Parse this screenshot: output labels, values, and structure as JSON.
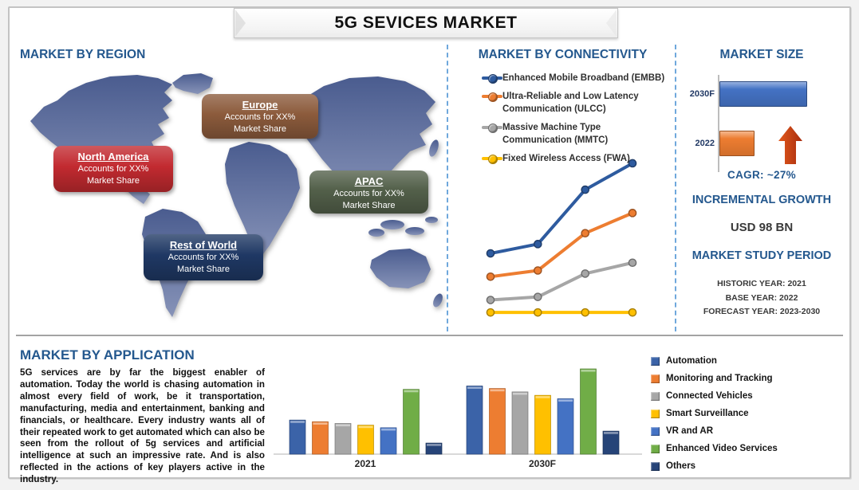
{
  "header": {
    "title": "5G SEVICES MARKET"
  },
  "colors": {
    "heading_blue": "#24588E",
    "dashed_divider": "#6FA8DC",
    "frame_border": "#C3C3C3",
    "growth_arrow": "#C23B16"
  },
  "region_panel": {
    "title": "MARKET BY REGION",
    "regions": [
      {
        "name": "Europe",
        "line1": "Accounts for XX%",
        "line2": "Market Share",
        "color": "#8C5B3C"
      },
      {
        "name": "North America",
        "line1": "Accounts for XX%",
        "line2": "Market Share",
        "color": "#C22A30"
      },
      {
        "name": "APAC",
        "line1": "Accounts for XX%",
        "line2": "Market Share",
        "color": "#53604A"
      },
      {
        "name": "Rest of World",
        "line1": "Accounts for XX%",
        "line2": "Market Share",
        "color": "#1F3864"
      }
    ]
  },
  "connectivity_panel": {
    "title": "MARKET BY CONNECTIVITY",
    "legend": [
      {
        "label": "Enhanced Mobile Broadband (EMBB)",
        "color": "#2E5B9F"
      },
      {
        "label": "Ultra-Reliable and Low Latency Communication (ULCC)",
        "color": "#ED7D31"
      },
      {
        "label": "Massive Machine Type Communication (MMTC)",
        "color": "#A6A6A6"
      },
      {
        "label": "Fixed Wireless Access (FWA)",
        "color": "#FFC000"
      }
    ]
  },
  "market_size_panel": {
    "title": "MARKET SIZE",
    "cagr": "CAGR:  ~27%",
    "incremental_growth_title": "INCREMENTAL GROWTH",
    "incremental_growth_value": "USD 98 BN",
    "study_period_title": "MARKET STUDY PERIOD",
    "study_lines": [
      "HISTORIC YEAR: 2021",
      "BASE YEAR: 2022",
      "FORECAST YEAR: 2023-2030"
    ]
  },
  "application_panel": {
    "title": "MARKET BY APPLICATION",
    "paragraph": "5G services are by far the biggest enabler of automation. Today the world is chasing automation in almost every field of work, be it transportation, manufacturing, media and entertainment, banking and financials, or healthcare. Every industry wants all of their repeated work to get automated which can also be seen from the rollout of 5g services and artificial intelligence at such an impressive rate. And is also reflected in the actions of key players active in the industry.",
    "legend": [
      {
        "label": "Automation",
        "color": "#3B63A8"
      },
      {
        "label": "Monitoring and Tracking",
        "color": "#ED7D31"
      },
      {
        "label": "Connected Vehicles",
        "color": "#A6A6A6"
      },
      {
        "label": "Smart Surveillance",
        "color": "#FFC000"
      },
      {
        "label": "VR and AR",
        "color": "#4472C4"
      },
      {
        "label": "Enhanced Video Services",
        "color": "#70AD47"
      },
      {
        "label": "Others",
        "color": "#264478"
      }
    ]
  },
  "chart_data": [
    {
      "type": "line",
      "title": "MARKET BY CONNECTIVITY",
      "x_labels": [
        "",
        "",
        "",
        ""
      ],
      "note": "No axis tick labels or values are shown in the figure; values are relative estimates on a 0-100 index.",
      "series": [
        {
          "name": "Enhanced Mobile Broadband (EMBB)",
          "color": "#2E5B9F",
          "values": [
            41,
            47,
            82,
            99
          ]
        },
        {
          "name": "Ultra-Reliable and Low Latency Communication (ULCC)",
          "color": "#ED7D31",
          "values": [
            26,
            30,
            54,
            67
          ]
        },
        {
          "name": "Massive Machine Type Communication (MMTC)",
          "color": "#A6A6A6",
          "values": [
            11,
            13,
            28,
            35
          ]
        },
        {
          "name": "Fixed Wireless Access (FWA)",
          "color": "#FFC000",
          "values": [
            3,
            3,
            3,
            3
          ]
        }
      ],
      "ylim": [
        0,
        100
      ],
      "grid": false,
      "legend_position": "top"
    },
    {
      "type": "bar",
      "orientation": "horizontal",
      "title": "MARKET SIZE",
      "categories": [
        "2030F",
        "2022"
      ],
      "values": [
        100,
        40
      ],
      "colors": [
        "#4472C4",
        "#ED7D31"
      ],
      "note": "Bar lengths are relative; no axis values shown. CAGR ~27%; incremental growth USD 98 BN (2022 to 2030F)."
    },
    {
      "type": "bar",
      "title": "MARKET BY APPLICATION",
      "categories": [
        "2021",
        "2030F"
      ],
      "series": [
        {
          "name": "Automation",
          "color": "#3B63A8",
          "values": [
            40,
            80
          ]
        },
        {
          "name": "Monitoring and Tracking",
          "color": "#ED7D31",
          "values": [
            38,
            77
          ]
        },
        {
          "name": "Connected Vehicles",
          "color": "#A6A6A6",
          "values": [
            36,
            73
          ]
        },
        {
          "name": "Smart Surveillance",
          "color": "#FFC000",
          "values": [
            34,
            69
          ]
        },
        {
          "name": "VR and AR",
          "color": "#4472C4",
          "values": [
            31,
            65
          ]
        },
        {
          "name": "Enhanced Video Services",
          "color": "#70AD47",
          "values": [
            76,
            100
          ]
        },
        {
          "name": "Others",
          "color": "#264478",
          "values": [
            13,
            27
          ]
        }
      ],
      "ylim": [
        0,
        100
      ],
      "grid": false,
      "legend_position": "right",
      "note": "No y-axis shown; values are relative estimates indexed to the tallest bar (Enhanced Video Services 2030F = 100)."
    }
  ]
}
